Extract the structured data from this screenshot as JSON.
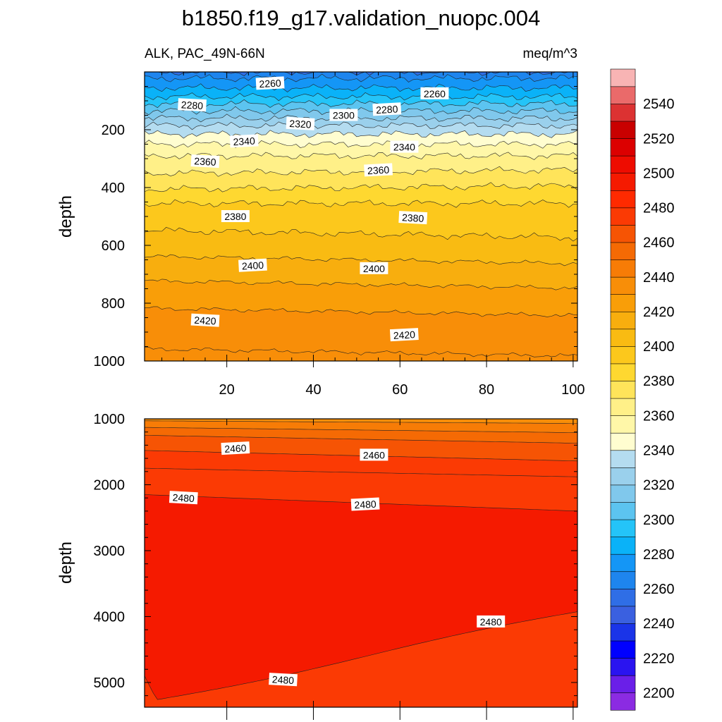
{
  "title": "b1850.f19_g17.validation_nuopc.004",
  "chart_data": [
    {
      "type": "contour",
      "variable_label": "ALK, PAC_49N-66N",
      "units_label": "meq/m^3",
      "xlabel": "",
      "ylabel": "depth",
      "xlim": [
        1,
        101
      ],
      "ylim": [
        1000,
        0
      ],
      "x_ticks": [
        "20",
        "40",
        "60",
        "80",
        "100"
      ],
      "y_ticks": [
        "200",
        "400",
        "600",
        "800",
        "1000"
      ],
      "contour_labels": [
        {
          "text": "2260",
          "x": 30,
          "depth": 40
        },
        {
          "text": "2260",
          "x": 68,
          "depth": 75
        },
        {
          "text": "2280",
          "x": 12,
          "depth": 115
        },
        {
          "text": "2280",
          "x": 57,
          "depth": 130
        },
        {
          "text": "2300",
          "x": 47,
          "depth": 150
        },
        {
          "text": "2320",
          "x": 37,
          "depth": 180
        },
        {
          "text": "2340",
          "x": 24,
          "depth": 240
        },
        {
          "text": "2340",
          "x": 61,
          "depth": 260
        },
        {
          "text": "2360",
          "x": 15,
          "depth": 310
        },
        {
          "text": "2360",
          "x": 55,
          "depth": 340
        },
        {
          "text": "2380",
          "x": 22,
          "depth": 500
        },
        {
          "text": "2380",
          "x": 63,
          "depth": 505
        },
        {
          "text": "2400",
          "x": 26,
          "depth": 670
        },
        {
          "text": "2400",
          "x": 54,
          "depth": 680
        },
        {
          "text": "2420",
          "x": 15,
          "depth": 860
        },
        {
          "text": "2420",
          "x": 61,
          "depth": 910
        }
      ]
    },
    {
      "type": "contour",
      "xlabel": "",
      "ylabel": "depth",
      "xlim": [
        1,
        101
      ],
      "ylim": [
        5375,
        1000
      ],
      "y_ticks": [
        "1000",
        "2000",
        "3000",
        "4000",
        "5000"
      ],
      "contour_labels": [
        {
          "text": "2460",
          "x": 22,
          "depth": 1450
        },
        {
          "text": "2460",
          "x": 54,
          "depth": 1550
        },
        {
          "text": "2480",
          "x": 10,
          "depth": 2200
        },
        {
          "text": "2480",
          "x": 52,
          "depth": 2300
        },
        {
          "text": "2480",
          "x": 81,
          "depth": 4080
        },
        {
          "text": "2480",
          "x": 33,
          "depth": 4960
        }
      ]
    }
  ],
  "colorbar": {
    "labels": [
      "2200",
      "2220",
      "2240",
      "2260",
      "2280",
      "2300",
      "2320",
      "2340",
      "2360",
      "2380",
      "2400",
      "2420",
      "2440",
      "2460",
      "2480",
      "2500",
      "2520",
      "2540"
    ],
    "colors": [
      "#8b2be2",
      "#6a1fe8",
      "#2a14f0",
      "#0000ff",
      "#1a34e8",
      "#3a60e0",
      "#2f6ee6",
      "#1e85ee",
      "#1496f6",
      "#0ab2f8",
      "#24c4f8",
      "#5cc4f0",
      "#80c8ec",
      "#9ad0ec",
      "#b4dcf0",
      "#fffdd0",
      "#fff7a8",
      "#fff088",
      "#ffe45a",
      "#fed830",
      "#fcc81c",
      "#f9bb12",
      "#f8ae0e",
      "#f99e08",
      "#f88e08",
      "#f77c06",
      "#f56a04",
      "#f65404",
      "#fb3a04",
      "#ff2a00",
      "#f51a00",
      "#ee0c00",
      "#dc0000",
      "#c90000",
      "#dc3232",
      "#ea6a6a",
      "#f8b4b4"
    ]
  }
}
